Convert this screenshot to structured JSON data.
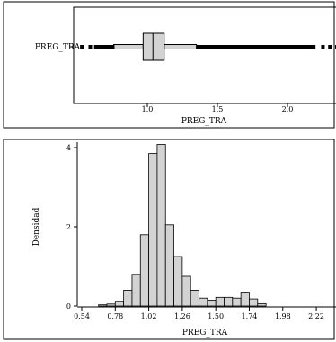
{
  "chart_data": [
    {
      "type": "boxplot",
      "category_label": "PREG_TRA",
      "xlabel": "PREG_TRA",
      "xticks": [
        1.0,
        1.5,
        2.0
      ],
      "xtick_labels": [
        "1.0",
        "1.5",
        "2.0"
      ],
      "xlim": [
        0.48,
        2.38
      ],
      "box": {
        "whisker_low": 0.76,
        "q1": 0.97,
        "median": 1.04,
        "q3": 1.12,
        "whisker_high": 1.35
      },
      "outlier_dashes_low": [
        0.52,
        0.58,
        0.62,
        0.66,
        0.7,
        0.74
      ],
      "outlier_dashes_high": [
        2.24,
        2.29,
        2.34
      ]
    },
    {
      "type": "histogram",
      "xlabel": "PREG_TRA",
      "ylabel": "Densidad",
      "xlim": [
        0.48,
        2.4
      ],
      "ylim": [
        0,
        4.1
      ],
      "xticks": [
        0.54,
        0.78,
        1.02,
        1.26,
        1.5,
        1.74,
        1.98,
        2.22
      ],
      "xtick_labels": [
        "0.54",
        "0.78",
        "1.02",
        "1.26",
        "1.50",
        "1.74",
        "1.98",
        "2.22"
      ],
      "yticks": [
        0,
        2,
        4
      ],
      "ytick_labels": [
        "0",
        "2",
        "4"
      ],
      "bin_width": 0.06,
      "bins": [
        {
          "x0": 0.66,
          "value": 0.03
        },
        {
          "x0": 0.72,
          "value": 0.05
        },
        {
          "x0": 0.78,
          "value": 0.12
        },
        {
          "x0": 0.84,
          "value": 0.4
        },
        {
          "x0": 0.9,
          "value": 0.8
        },
        {
          "x0": 0.96,
          "value": 1.8
        },
        {
          "x0": 1.02,
          "value": 3.85
        },
        {
          "x0": 1.08,
          "value": 4.08
        },
        {
          "x0": 1.14,
          "value": 2.05
        },
        {
          "x0": 1.2,
          "value": 1.25
        },
        {
          "x0": 1.26,
          "value": 0.75
        },
        {
          "x0": 1.32,
          "value": 0.4
        },
        {
          "x0": 1.38,
          "value": 0.2
        },
        {
          "x0": 1.44,
          "value": 0.15
        },
        {
          "x0": 1.5,
          "value": 0.22
        },
        {
          "x0": 1.56,
          "value": 0.22
        },
        {
          "x0": 1.62,
          "value": 0.2
        },
        {
          "x0": 1.68,
          "value": 0.35
        },
        {
          "x0": 1.74,
          "value": 0.18
        },
        {
          "x0": 1.8,
          "value": 0.06
        }
      ]
    }
  ],
  "colors": {
    "fill": "#d3d3d3",
    "stroke": "#000000"
  }
}
